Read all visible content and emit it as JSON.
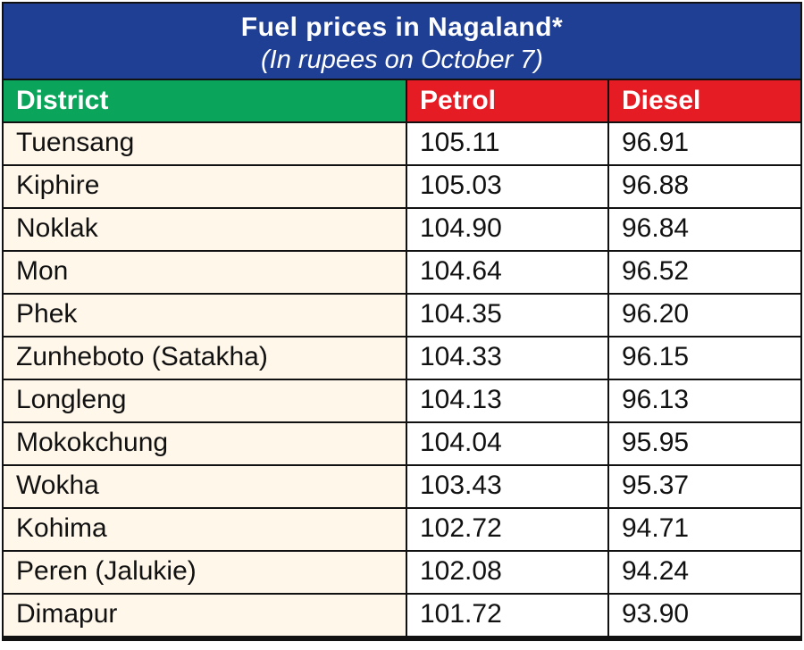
{
  "chart_data": {
    "type": "table",
    "title": "Fuel prices in Nagaland*",
    "subtitle": "(In rupees on October 7)",
    "columns": [
      "District",
      "Petrol",
      "Diesel"
    ],
    "rows": [
      {
        "district": "Tuensang",
        "petrol": "105.11",
        "diesel": "96.91"
      },
      {
        "district": "Kiphire",
        "petrol": "105.03",
        "diesel": "96.88"
      },
      {
        "district": "Noklak",
        "petrol": "104.90",
        "diesel": "96.84"
      },
      {
        "district": "Mon",
        "petrol": "104.64",
        "diesel": "96.52"
      },
      {
        "district": "Phek",
        "petrol": "104.35",
        "diesel": "96.20"
      },
      {
        "district": "Zunheboto (Satakha)",
        "petrol": "104.33",
        "diesel": "96.15"
      },
      {
        "district": "Longleng",
        "petrol": "104.13",
        "diesel": "96.13"
      },
      {
        "district": "Mokokchung",
        "petrol": "104.04",
        "diesel": "95.95"
      },
      {
        "district": "Wokha",
        "petrol": "103.43",
        "diesel": "95.37"
      },
      {
        "district": "Kohima",
        "petrol": "102.72",
        "diesel": "94.71"
      },
      {
        "district": "Peren (Jalukie)",
        "petrol": "102.08",
        "diesel": "94.24"
      },
      {
        "district": "Dimapur",
        "petrol": "101.72",
        "diesel": "93.90"
      }
    ]
  },
  "colors": {
    "title_background": "#1f3f95",
    "district_header": "#0aa55a",
    "price_header": "#e51c23",
    "district_cell": "#fff7ea"
  }
}
